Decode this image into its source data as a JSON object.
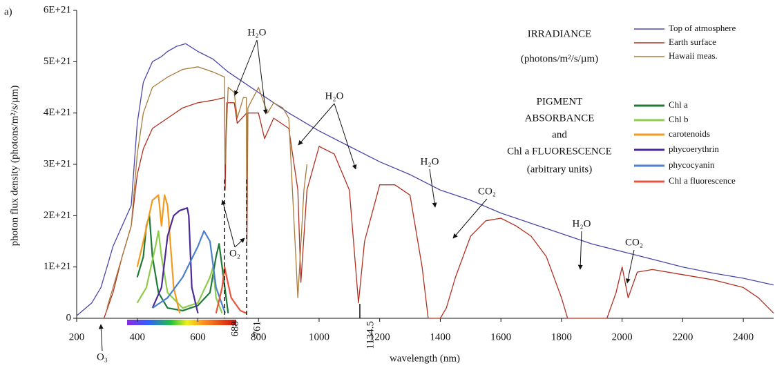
{
  "chart_data": {
    "type": "line",
    "panel_label": "a)",
    "xlabel": "wavelength (nm)",
    "ylabel": "photon flux density (photons/m²/s/µm)",
    "xlim": [
      200,
      2500
    ],
    "ylim": [
      0,
      6e+21
    ],
    "xticks": [
      200,
      400,
      600,
      800,
      1000,
      1200,
      1400,
      1600,
      1800,
      2000,
      2200,
      2400
    ],
    "yticks": [
      0,
      {
        "value": 1e+21,
        "label": "1E+21"
      },
      {
        "value": 2e+21,
        "label": "2E+21"
      },
      {
        "value": 3e+21,
        "label": "3E+21"
      },
      {
        "value": 4e+21,
        "label": "4E+21"
      },
      {
        "value": 5e+21,
        "label": "5E+21"
      },
      {
        "value": 6e+21,
        "label": "6E+21"
      }
    ],
    "marked_wavelengths": [
      688,
      761,
      1134.5
    ],
    "legend_position": "upper right",
    "legend_groups": [
      {
        "title": [
          "IRRADIANCE",
          "(photons/m²/s/µm)"
        ],
        "series": [
          0,
          1,
          2
        ]
      },
      {
        "title": [
          "PIGMENT",
          "ABSORBANCE",
          "and",
          "Chl a FLUORESCENCE",
          "(arbitrary units)"
        ],
        "series": [
          3,
          4,
          5,
          6,
          7,
          8
        ]
      }
    ],
    "annotations": [
      "H₂O",
      "H₂O",
      "H₂O",
      "CO₂",
      "H₂O",
      "CO₂",
      "O₂",
      "O₃"
    ],
    "series": [
      {
        "name": "Top of atmosphere",
        "color": "#4a47a8",
        "x": [
          200,
          250,
          280,
          300,
          320,
          350,
          380,
          400,
          420,
          450,
          480,
          500,
          530,
          560,
          600,
          650,
          700,
          750,
          800,
          850,
          900,
          1000,
          1100,
          1200,
          1300,
          1400,
          1500,
          1600,
          1700,
          1800,
          1900,
          2000,
          2100,
          2200,
          2300,
          2400,
          2500
        ],
        "values": [
          5e+19,
          3e+20,
          6e+20,
          1e+21,
          1.4e+21,
          1.8e+21,
          2.2e+21,
          3.8e+21,
          4.6e+21,
          5e+21,
          5.1e+21,
          5.2e+21,
          5.3e+21,
          5.35e+21,
          5.2e+21,
          5.05e+21,
          4.8e+21,
          4.6e+21,
          4.4e+21,
          4.2e+21,
          4e+21,
          3.65e+21,
          3.35e+21,
          3.05e+21,
          2.8e+21,
          2.5e+21,
          2.3e+21,
          2.05e+21,
          1.85e+21,
          1.65e+21,
          1.45e+21,
          1.3e+21,
          1.15e+21,
          1e+21,
          8.8e+20,
          7.8e+20,
          6.5e+20
        ]
      },
      {
        "name": "Earth surface",
        "color": "#b03020",
        "x": [
          290,
          320,
          350,
          380,
          400,
          420,
          450,
          500,
          550,
          600,
          650,
          688,
          690,
          695,
          720,
          730,
          761,
          762,
          765,
          800,
          820,
          850,
          900,
          930,
          940,
          960,
          1000,
          1050,
          1100,
          1130,
          1150,
          1200,
          1250,
          1300,
          1340,
          1360,
          1400,
          1420,
          1450,
          1500,
          1550,
          1600,
          1650,
          1700,
          1750,
          1800,
          1820,
          1950,
          1980,
          2000,
          2020,
          2050,
          2100,
          2200,
          2300,
          2400,
          2450,
          2500
        ],
        "values": [
          0,
          5e+20,
          1.2e+21,
          1.8e+21,
          2.8e+21,
          3.3e+21,
          3.7e+21,
          3.9e+21,
          4.1e+21,
          4.2e+21,
          4.25e+21,
          4.3e+21,
          2.5e+21,
          4.2e+21,
          4.2e+21,
          3.8e+21,
          4e+21,
          1.5e+21,
          4e+21,
          4e+21,
          3.5e+21,
          3.9e+21,
          3.7e+21,
          2.5e+21,
          7e+20,
          2.5e+21,
          3.35e+21,
          3.2e+21,
          2.5e+21,
          3e+20,
          1.5e+21,
          2.6e+21,
          2.6e+21,
          2.4e+21,
          1e+21,
          0,
          0,
          2e+20,
          8e+20,
          1.6e+21,
          1.9e+21,
          1.95e+21,
          1.8e+21,
          1.6e+21,
          1.2e+21,
          4e+20,
          0,
          0,
          5e+20,
          1e+21,
          4e+20,
          9e+20,
          9.5e+20,
          8.5e+20,
          7.5e+20,
          6e+20,
          4e+20,
          1e+20
        ]
      },
      {
        "name": "Hawaii meas.",
        "color": "#a87a3a",
        "x": [
          300,
          350,
          380,
          400,
          420,
          450,
          500,
          550,
          600,
          650,
          688,
          690,
          700,
          720,
          730,
          750,
          760,
          761,
          765,
          800,
          830,
          850,
          880,
          900,
          930,
          950,
          960
        ],
        "values": [
          2e+20,
          1.2e+21,
          1.8e+21,
          3.2e+21,
          4e+21,
          4.5e+21,
          4.7e+21,
          4.85e+21,
          4.9e+21,
          4.8e+21,
          4.7e+21,
          3e+21,
          4.5e+21,
          4.4e+21,
          3.9e+21,
          4.3e+21,
          4.3e+21,
          1.9e+21,
          4.1e+21,
          4.5e+21,
          4e+21,
          4.2e+21,
          4.1e+21,
          3.9e+21,
          4e+20,
          2.5e+21,
          3e+21
        ]
      },
      {
        "name": "Chl a",
        "color": "#1e7a35",
        "x": [
          400,
          420,
          430,
          440,
          450,
          470,
          500,
          550,
          600,
          640,
          660,
          670,
          680,
          700
        ],
        "values": [
          8e+20,
          1.2e+21,
          1.8e+21,
          2e+21,
          1.2e+21,
          5e+20,
          2e+20,
          1.5e+20,
          2.5e+20,
          5e+20,
          1.2e+21,
          1.45e+21,
          1e+21,
          1e+20
        ]
      },
      {
        "name": "Chl b",
        "color": "#8ccc4a",
        "x": [
          400,
          430,
          460,
          470,
          480,
          500,
          550,
          600,
          640,
          650,
          660,
          680
        ],
        "values": [
          3e+20,
          6e+20,
          1.4e+21,
          1.7e+21,
          1.2e+21,
          5e+20,
          2e+20,
          3e+20,
          8e+20,
          1e+21,
          4e+20,
          1e+20
        ]
      },
      {
        "name": "carotenoids",
        "color": "#f39a1c",
        "x": [
          400,
          420,
          450,
          470,
          480,
          490,
          500,
          520,
          540
        ],
        "values": [
          1e+21,
          1.5e+21,
          2.3e+21,
          2.4e+21,
          1.8e+21,
          2.4e+21,
          2.2e+21,
          6e+20,
          1e+20
        ]
      },
      {
        "name": "phycoerythrin",
        "color": "#4a2a9a",
        "x": [
          450,
          480,
          500,
          520,
          540,
          565,
          570,
          580,
          600
        ],
        "values": [
          2e+20,
          6e+20,
          1.6e+21,
          2e+21,
          2.1e+21,
          2.15e+21,
          2e+21,
          6e+20,
          1e+20
        ]
      },
      {
        "name": "phycocyanin",
        "color": "#4a7fd0",
        "x": [
          450,
          500,
          550,
          600,
          620,
          640,
          660,
          690
        ],
        "values": [
          2e+20,
          4e+20,
          8e+20,
          1.4e+21,
          1.7e+21,
          1.5e+21,
          6e+20,
          1e+20
        ]
      },
      {
        "name": "Chl a fluorescence",
        "color": "#e8553a",
        "x": [
          660,
          680,
          688,
          695,
          710,
          740,
          760
        ],
        "values": [
          1e+20,
          6e+20,
          1e+21,
          8e+20,
          4e+20,
          1.5e+20,
          1e+20
        ]
      }
    ]
  }
}
